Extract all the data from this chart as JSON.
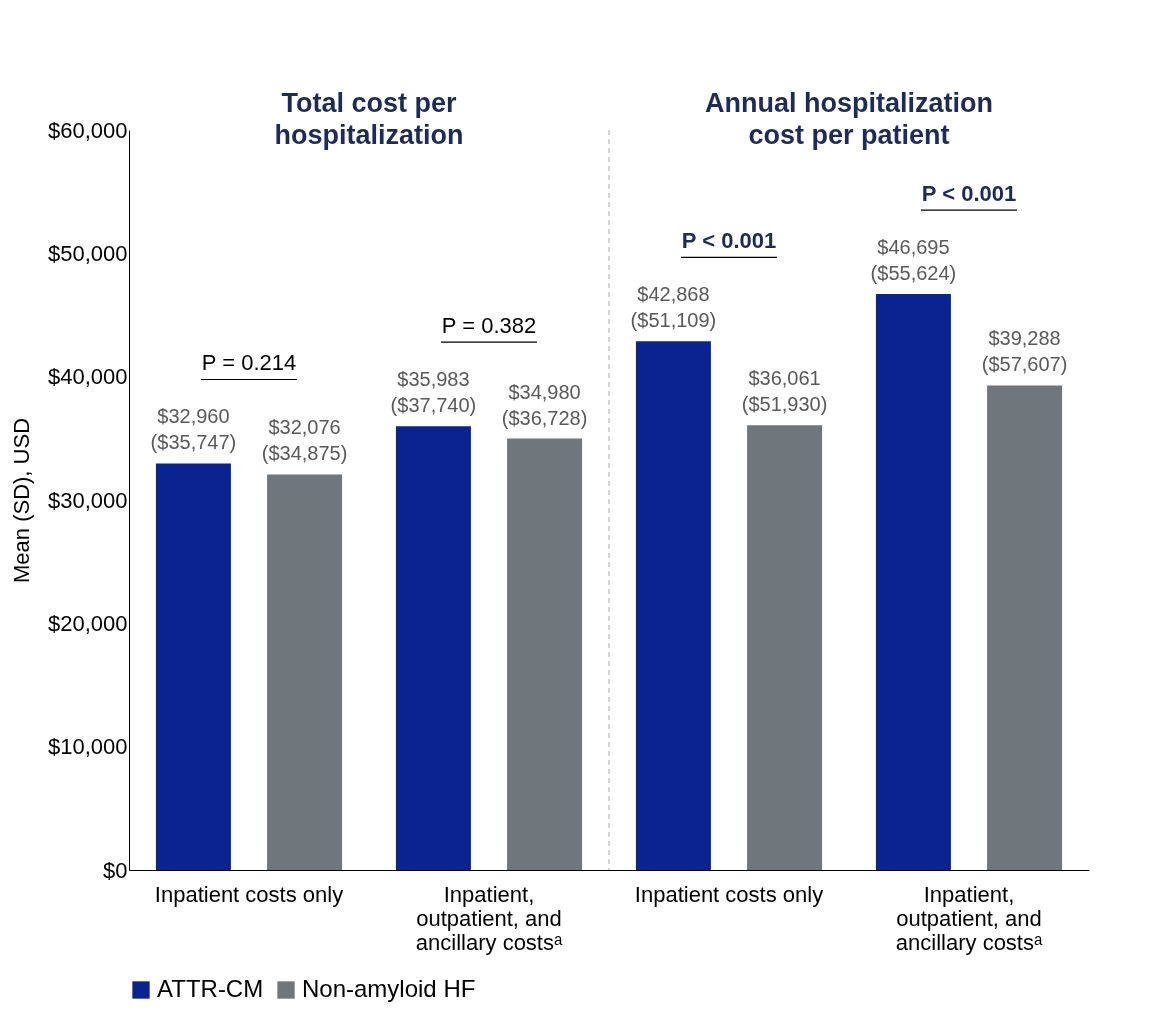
{
  "chart_data": {
    "type": "bar",
    "categories": [
      "Inpatient costs only",
      "Inpatient, outpatient, and ancillary costsᵃ",
      "Inpatient costs only",
      "Inpatient, outpatient, and ancillary costsᵃ"
    ],
    "series": [
      {
        "name": "ATTR-CM",
        "color": "#0a2390",
        "values": [
          32960,
          35983,
          42868,
          46695
        ],
        "value_labels": [
          "$32,960 ($35,747)",
          "$35,983 ($37,740)",
          "$42,868 ($51,109)",
          "$46,695 ($55,624)"
        ]
      },
      {
        "name": "Non-amyloid HF",
        "color": "#70777c",
        "values": [
          32076,
          34980,
          36061,
          39288
        ],
        "value_labels": [
          "$32,076 ($34,875)",
          "$34,980 ($36,728)",
          "$36,061 ($51,930)",
          "$39,288 ($57,607)"
        ]
      }
    ],
    "ylabel": "Mean (SD), USD",
    "ylim": [
      0,
      60000
    ],
    "yticks": [
      {
        "value": 0,
        "label": "$0"
      },
      {
        "value": 10000,
        "label": "$10,000"
      },
      {
        "value": 20000,
        "label": "$20,000"
      },
      {
        "value": 30000,
        "label": "$30,000"
      },
      {
        "value": 40000,
        "label": "$40,000"
      },
      {
        "value": 50000,
        "label": "$50,000"
      },
      {
        "value": 60000,
        "label": "$60,000"
      }
    ],
    "annotations": [
      "Total cost per hospitalization",
      "Annual hospitalization cost per patient",
      "P = 0.214",
      "P = 0.382",
      "P < 0.001",
      "P < 0.001"
    ],
    "grid": false,
    "legend": "bottom"
  }
}
